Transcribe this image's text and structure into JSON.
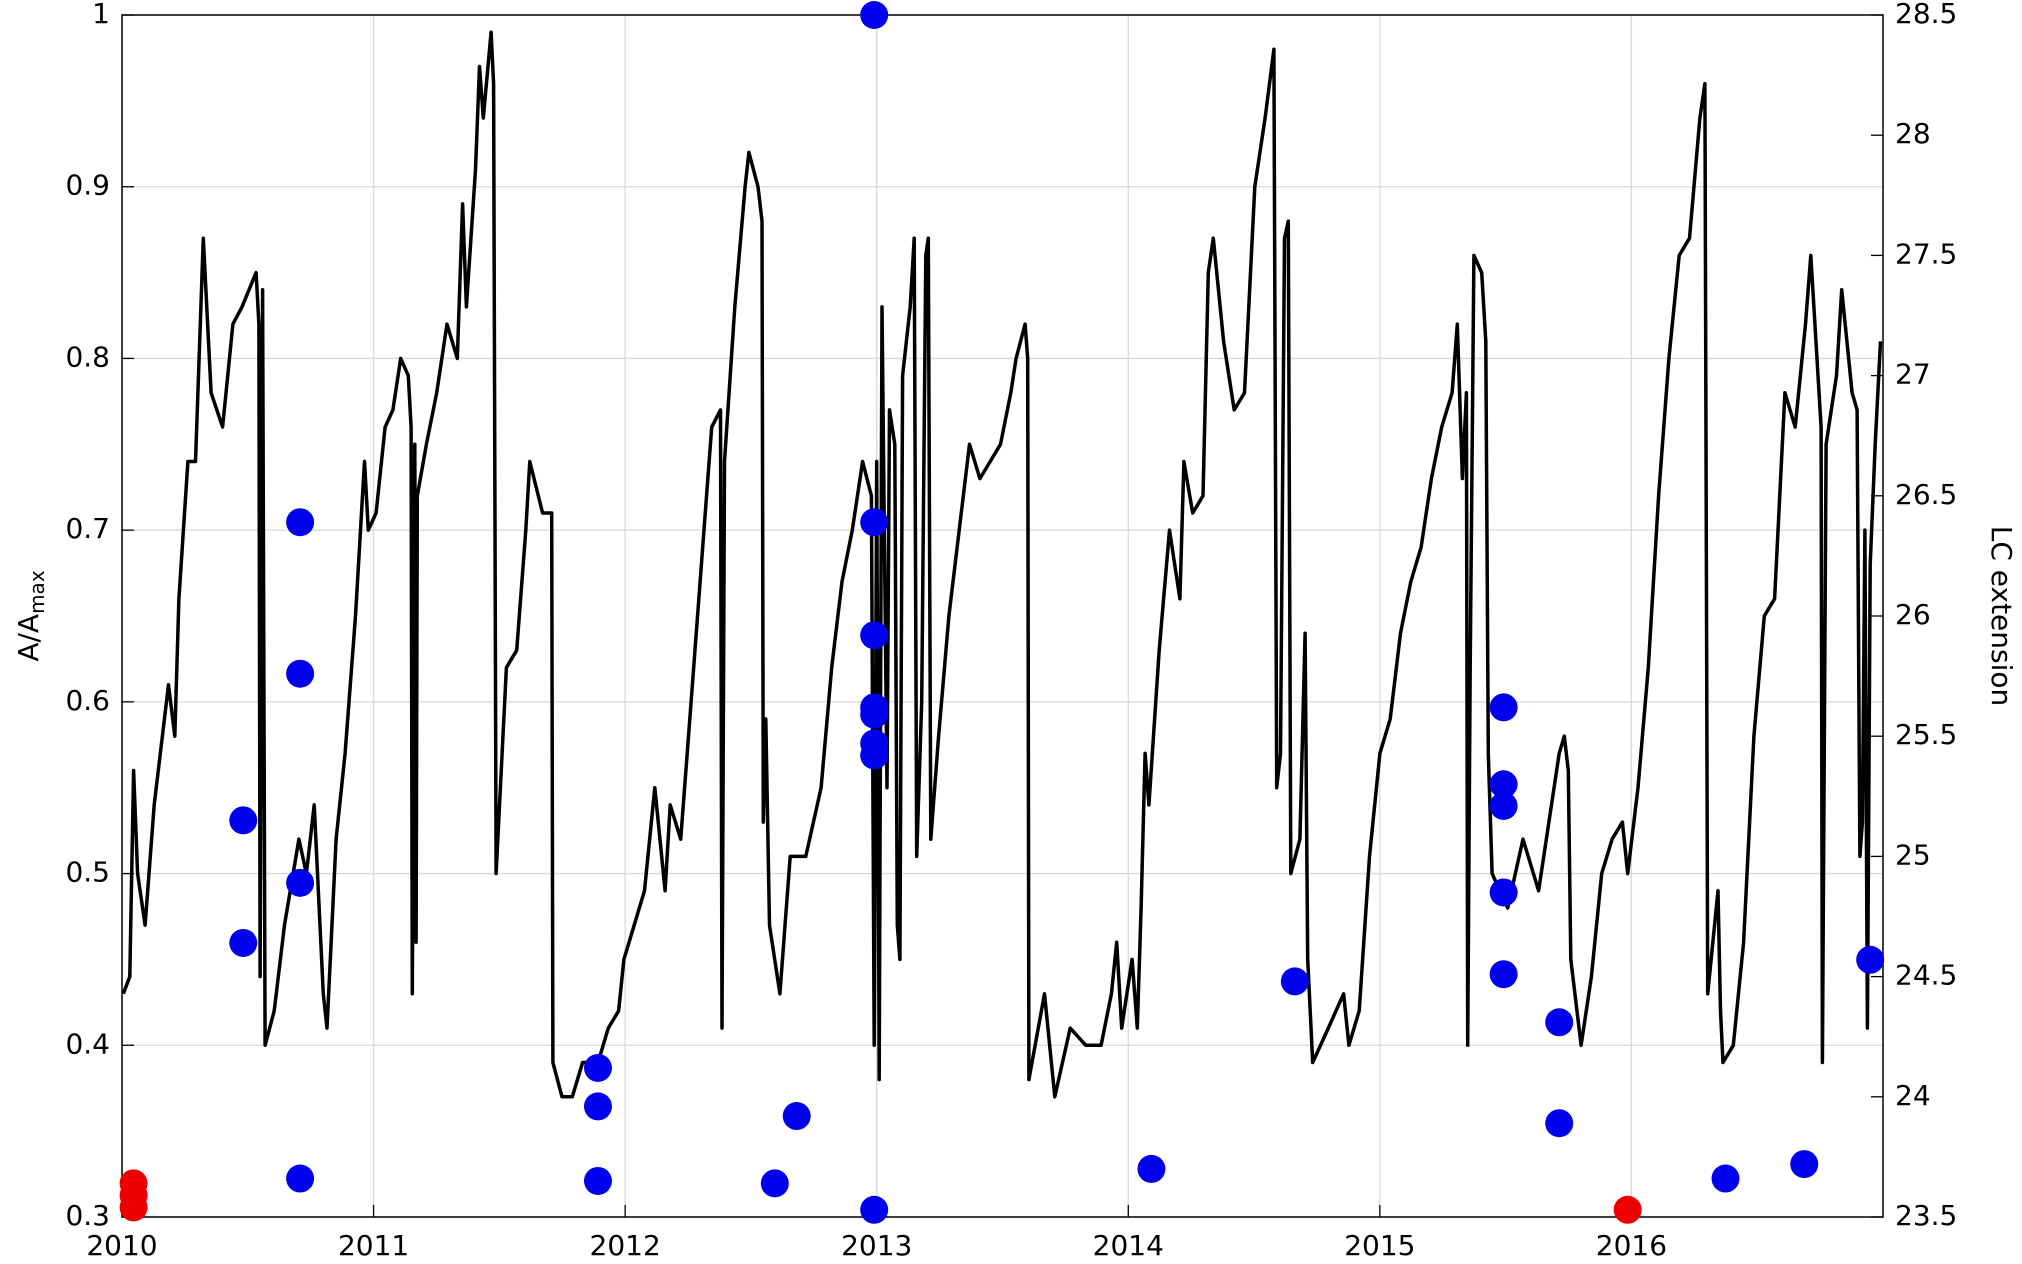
{
  "chart_data": {
    "type": "line",
    "ylabel": "A/A",
    "ylabel_subscript": "max",
    "y2label": "LC extension",
    "xlim": [
      2010,
      2017
    ],
    "xticks": [
      2010,
      2011,
      2012,
      2013,
      2014,
      2015,
      2016
    ],
    "ylim": [
      0.3,
      1
    ],
    "yticks": [
      0.3,
      0.4,
      0.5,
      0.6,
      0.7,
      0.8,
      0.9,
      1
    ],
    "y2lim": [
      23.5,
      28.5
    ],
    "y2ticks": [
      23.5,
      24,
      24.5,
      25,
      25.5,
      26,
      26.5,
      27,
      27.5,
      28,
      28.5
    ],
    "grid": true,
    "series": [
      {
        "type": "line",
        "color": "#000000",
        "x": [
          2010.005,
          2010.031,
          2010.046,
          2010.062,
          2010.092,
          2010.128,
          2010.185,
          2010.21,
          2010.226,
          2010.262,
          2010.292,
          2010.323,
          2010.354,
          2010.4,
          2010.441,
          2010.477,
          2010.533,
          2010.544,
          2010.549,
          2010.559,
          2010.569,
          2010.605,
          2010.646,
          2010.703,
          2010.733,
          2010.764,
          2010.8,
          2010.815,
          2010.851,
          2010.887,
          2010.928,
          2010.964,
          2010.979,
          2011.01,
          2011.046,
          2011.077,
          2011.108,
          2011.138,
          2011.149,
          2011.154,
          2011.164,
          2011.169,
          2011.174,
          2011.21,
          2011.251,
          2011.292,
          2011.333,
          2011.354,
          2011.369,
          2011.405,
          2011.421,
          2011.436,
          2011.467,
          2011.477,
          2011.487,
          2011.528,
          2011.569,
          2011.605,
          2011.621,
          2011.672,
          2011.708,
          2011.713,
          2011.749,
          2011.79,
          2011.831,
          2011.892,
          2011.933,
          2011.974,
          2011.995,
          2012.036,
          2012.077,
          2012.118,
          2012.159,
          2012.179,
          2012.221,
          2012.262,
          2012.303,
          2012.344,
          2012.379,
          2012.385,
          2012.395,
          2012.436,
          2012.477,
          2012.492,
          2012.528,
          2012.544,
          2012.549,
          2012.559,
          2012.574,
          2012.615,
          2012.656,
          2012.718,
          2012.779,
          2012.821,
          2012.862,
          2012.903,
          2012.944,
          2012.979,
          2012.99,
          2013.0,
          2013.01,
          2013.021,
          2013.041,
          2013.051,
          2013.072,
          2013.082,
          2013.092,
          2013.103,
          2013.133,
          2013.149,
          2013.159,
          2013.179,
          2013.195,
          2013.205,
          2013.215,
          2013.246,
          2013.287,
          2013.328,
          2013.369,
          2013.41,
          2013.451,
          2013.492,
          2013.533,
          2013.554,
          2013.59,
          2013.6,
          2013.605,
          2013.667,
          2013.708,
          2013.769,
          2013.831,
          2013.892,
          2013.933,
          2013.954,
          2013.974,
          2014.015,
          2014.036,
          2014.051,
          2014.067,
          2014.082,
          2014.123,
          2014.164,
          2014.205,
          2014.221,
          2014.256,
          2014.297,
          2014.318,
          2014.338,
          2014.379,
          2014.421,
          2014.462,
          2014.503,
          2014.544,
          2014.579,
          2014.59,
          2014.605,
          2014.621,
          2014.636,
          2014.646,
          2014.682,
          2014.703,
          2014.713,
          2014.733,
          2014.795,
          2014.856,
          2014.877,
          2014.918,
          2014.959,
          2015.0,
          2015.041,
          2015.082,
          2015.123,
          2015.164,
          2015.205,
          2015.246,
          2015.287,
          2015.308,
          2015.328,
          2015.344,
          2015.349,
          2015.359,
          2015.374,
          2015.405,
          2015.421,
          2015.431,
          2015.446,
          2015.508,
          2015.569,
          2015.631,
          2015.672,
          2015.713,
          2015.733,
          2015.749,
          2015.759,
          2015.8,
          2015.841,
          2015.882,
          2015.923,
          2015.964,
          2015.985,
          2016.026,
          2016.067,
          2016.108,
          2016.149,
          2016.19,
          2016.231,
          2016.272,
          2016.292,
          2016.303,
          2016.344,
          2016.354,
          2016.364,
          2016.405,
          2016.446,
          2016.487,
          2016.528,
          2016.569,
          2016.61,
          2016.651,
          2016.692,
          2016.713,
          2016.754,
          2016.759,
          2016.774,
          2016.815,
          2016.836,
          2016.877,
          2016.897,
          2016.908,
          2016.918,
          2016.928,
          2016.938,
          2016.949,
          2016.969,
          2016.99
        ],
        "values": [
          0.43,
          0.44,
          0.56,
          0.5,
          0.47,
          0.54,
          0.61,
          0.58,
          0.66,
          0.74,
          0.74,
          0.87,
          0.78,
          0.76,
          0.82,
          0.83,
          0.85,
          0.82,
          0.44,
          0.84,
          0.4,
          0.42,
          0.47,
          0.52,
          0.5,
          0.54,
          0.43,
          0.41,
          0.52,
          0.57,
          0.65,
          0.74,
          0.7,
          0.71,
          0.76,
          0.77,
          0.8,
          0.79,
          0.76,
          0.43,
          0.75,
          0.46,
          0.72,
          0.75,
          0.78,
          0.82,
          0.8,
          0.89,
          0.83,
          0.91,
          0.97,
          0.94,
          0.99,
          0.96,
          0.5,
          0.62,
          0.63,
          0.7,
          0.74,
          0.71,
          0.71,
          0.39,
          0.37,
          0.37,
          0.39,
          0.39,
          0.41,
          0.42,
          0.45,
          0.47,
          0.49,
          0.55,
          0.49,
          0.54,
          0.52,
          0.6,
          0.68,
          0.76,
          0.77,
          0.41,
          0.74,
          0.83,
          0.9,
          0.92,
          0.9,
          0.88,
          0.53,
          0.59,
          0.47,
          0.43,
          0.51,
          0.51,
          0.55,
          0.62,
          0.67,
          0.7,
          0.74,
          0.72,
          0.4,
          0.74,
          0.38,
          0.83,
          0.55,
          0.77,
          0.75,
          0.47,
          0.45,
          0.79,
          0.83,
          0.87,
          0.51,
          0.6,
          0.86,
          0.87,
          0.52,
          0.58,
          0.65,
          0.7,
          0.75,
          0.73,
          0.74,
          0.75,
          0.78,
          0.8,
          0.82,
          0.8,
          0.38,
          0.43,
          0.37,
          0.41,
          0.4,
          0.4,
          0.43,
          0.46,
          0.41,
          0.45,
          0.41,
          0.48,
          0.57,
          0.54,
          0.63,
          0.7,
          0.66,
          0.74,
          0.71,
          0.72,
          0.85,
          0.87,
          0.81,
          0.77,
          0.78,
          0.9,
          0.94,
          0.98,
          0.55,
          0.57,
          0.87,
          0.88,
          0.5,
          0.52,
          0.64,
          0.45,
          0.39,
          0.41,
          0.43,
          0.4,
          0.42,
          0.51,
          0.57,
          0.59,
          0.64,
          0.67,
          0.69,
          0.73,
          0.76,
          0.78,
          0.82,
          0.73,
          0.78,
          0.4,
          0.62,
          0.86,
          0.85,
          0.81,
          0.57,
          0.5,
          0.48,
          0.52,
          0.49,
          0.53,
          0.57,
          0.58,
          0.56,
          0.45,
          0.4,
          0.44,
          0.5,
          0.52,
          0.53,
          0.5,
          0.55,
          0.62,
          0.72,
          0.8,
          0.86,
          0.87,
          0.94,
          0.96,
          0.43,
          0.49,
          0.42,
          0.39,
          0.4,
          0.46,
          0.58,
          0.65,
          0.66,
          0.78,
          0.76,
          0.82,
          0.86,
          0.76,
          0.39,
          0.75,
          0.79,
          0.84,
          0.78,
          0.77,
          0.51,
          0.53,
          0.7,
          0.41,
          0.68,
          0.75,
          0.81
        ]
      },
      {
        "type": "scatter",
        "axis": "y2",
        "color": "#0000ee",
        "x": [
          2010.482,
          2010.482,
          2010.708,
          2010.708,
          2010.708,
          2010.708,
          2011.892,
          2011.892,
          2011.892,
          2012.595,
          2012.682,
          2012.99,
          2012.99,
          2012.99,
          2012.99,
          2012.99,
          2012.99,
          2012.99,
          2012.99,
          2014.092,
          2014.662,
          2015.492,
          2015.492,
          2015.492,
          2015.492,
          2015.492,
          2015.713,
          2015.713,
          2016.374,
          2016.687,
          2016.949
        ],
        "values": [
          25.15,
          24.64,
          26.39,
          25.76,
          24.89,
          23.66,
          24.12,
          23.96,
          23.65,
          23.64,
          23.92,
          28.5,
          26.39,
          25.92,
          25.62,
          25.59,
          25.47,
          25.42,
          23.53,
          23.7,
          24.48,
          25.62,
          25.3,
          25.21,
          24.85,
          24.51,
          24.31,
          23.89,
          23.66,
          23.72,
          24.57
        ]
      },
      {
        "type": "scatter",
        "axis": "y2",
        "color": "#ee0000",
        "x": [
          2010.046,
          2010.046,
          2010.046,
          2015.985
        ],
        "values": [
          23.64,
          23.59,
          23.54,
          23.53
        ]
      }
    ]
  }
}
